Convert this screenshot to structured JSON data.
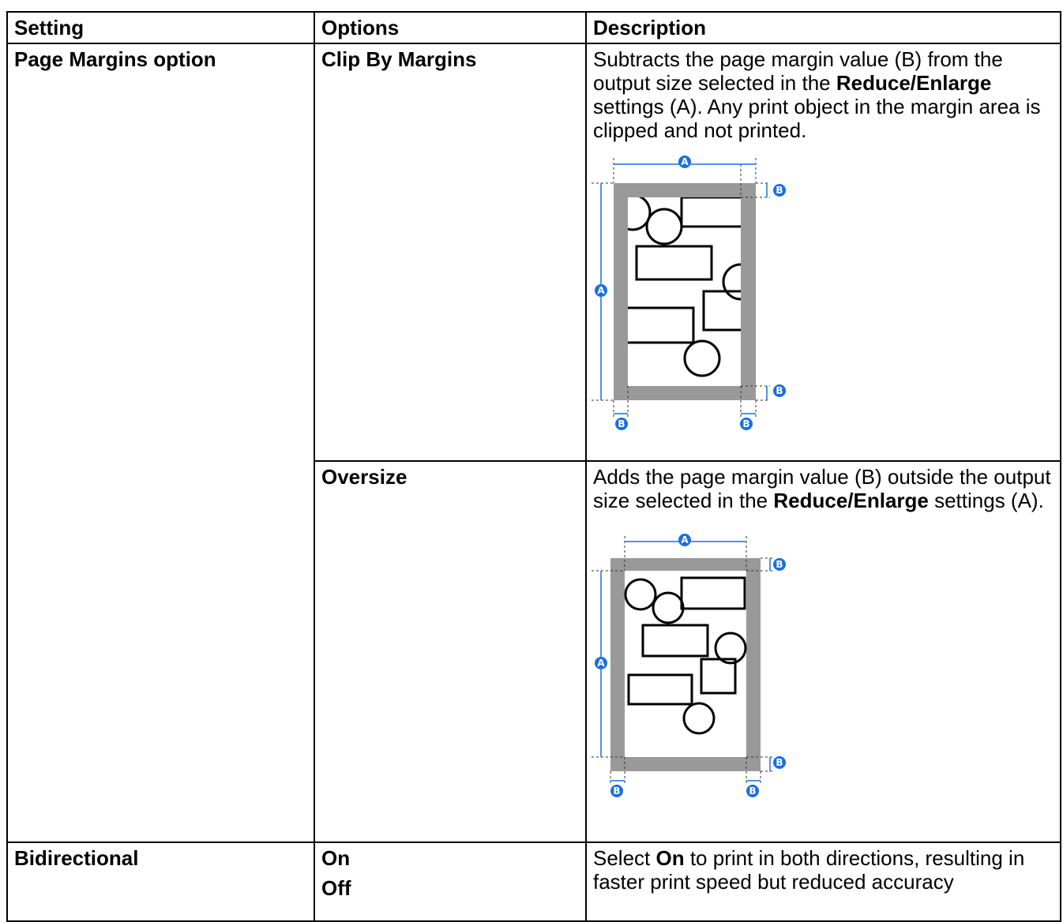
{
  "table": {
    "header": [
      "Setting",
      "Options",
      "Description"
    ],
    "rows": [
      {
        "setting": "Page Margins option",
        "options": [
          "Clip By Margins"
        ],
        "description": [
          "Subtracts the page margin value (B) from the output size selected in the ",
          "Reduce/Enlarge",
          " settings (A). Any print object in the margin area is clipped and not printed."
        ]
      },
      {
        "options": [
          "Oversize"
        ],
        "description": [
          "Adds the page margin value (B) outside the output size selected in the ",
          "Reduce/Enlarge",
          " settings (A)."
        ]
      },
      {
        "setting": "Bidirectional",
        "options": [
          "On",
          "Off"
        ],
        "description": [
          "Select ",
          "On",
          " to print in both directions, resulting in faster print speed but reduced accuracy"
        ]
      }
    ]
  },
  "figure_labels": {
    "a": "A",
    "b": "B"
  }
}
